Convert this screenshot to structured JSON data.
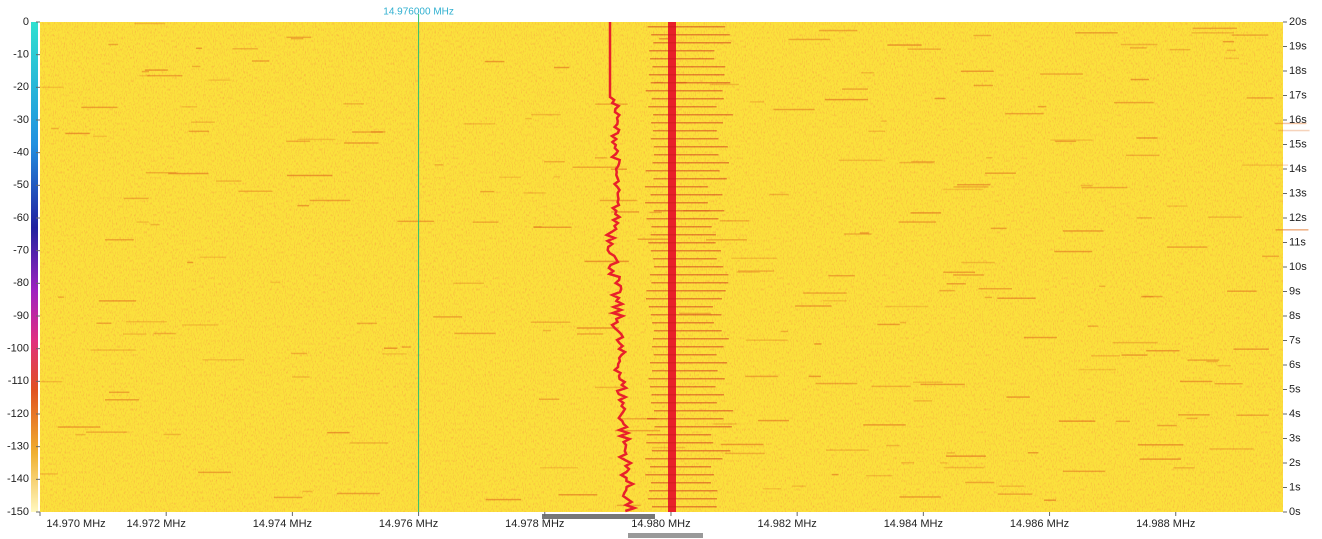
{
  "chart_data": {
    "type": "waterfall",
    "cursor": {
      "value": 14.976,
      "label": "14.976000 MHz"
    },
    "xlim": [
      14.97,
      14.9897
    ],
    "xticks": [
      {
        "value": 14.97,
        "label": "14.970 MHz"
      },
      {
        "value": 14.972,
        "label": "14.972 MHz"
      },
      {
        "value": 14.974,
        "label": "14.974 MHz"
      },
      {
        "value": 14.976,
        "label": "14.976 MHz"
      },
      {
        "value": 14.978,
        "label": "14.978 MHz"
      },
      {
        "value": 14.98,
        "label": "14.980 MHz"
      },
      {
        "value": 14.982,
        "label": "14.982 MHz"
      },
      {
        "value": 14.984,
        "label": "14.984 MHz"
      },
      {
        "value": 14.986,
        "label": "14.986 MHz"
      },
      {
        "value": 14.988,
        "label": "14.988 MHz"
      }
    ],
    "ylim": [
      -150,
      0
    ],
    "yticks": [
      0,
      -10,
      -20,
      -30,
      -40,
      -50,
      -60,
      -70,
      -80,
      -90,
      -100,
      -110,
      -120,
      -130,
      -140,
      -150
    ],
    "y2lim": [
      0,
      20
    ],
    "y2ticks": [
      {
        "value": 20,
        "label": "20s"
      },
      {
        "value": 19,
        "label": "19s"
      },
      {
        "value": 18,
        "label": "18s"
      },
      {
        "value": 17,
        "label": "17s"
      },
      {
        "value": 16,
        "label": "16s"
      },
      {
        "value": 15,
        "label": "15s"
      },
      {
        "value": 14,
        "label": "14s"
      },
      {
        "value": 13,
        "label": "13s"
      },
      {
        "value": 12,
        "label": "12s"
      },
      {
        "value": 11,
        "label": "11s"
      },
      {
        "value": 10,
        "label": "10s"
      },
      {
        "value": 9,
        "label": "9s"
      },
      {
        "value": 8,
        "label": "8s"
      },
      {
        "value": 7,
        "label": "7s"
      },
      {
        "value": 6,
        "label": "6s"
      },
      {
        "value": 5,
        "label": "5s"
      },
      {
        "value": 4,
        "label": "4s"
      },
      {
        "value": 3,
        "label": "3s"
      },
      {
        "value": 2,
        "label": "2s"
      },
      {
        "value": 1,
        "label": "1s"
      },
      {
        "value": 0,
        "label": "0s"
      }
    ]
  }
}
